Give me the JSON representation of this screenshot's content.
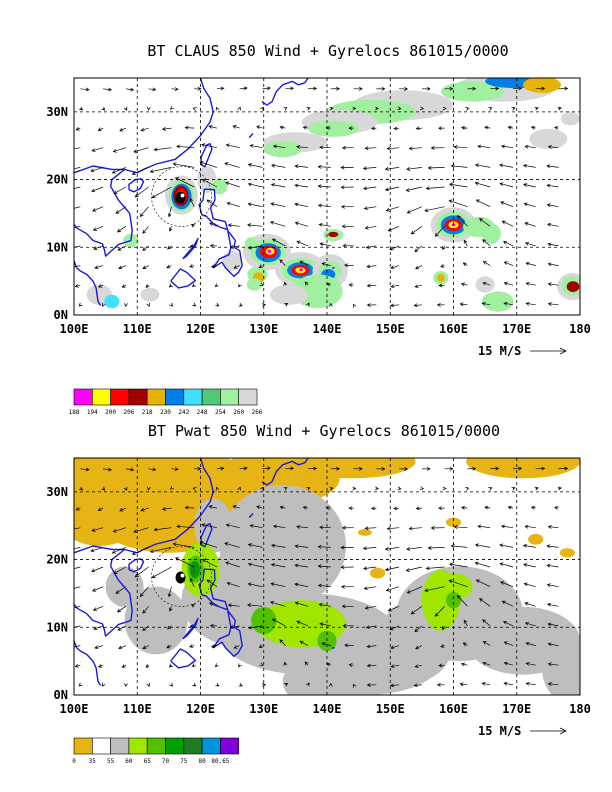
{
  "panels": [
    {
      "title": "BT CLAUS 850 Wind + Gyrelocs 861015/0000",
      "field": "claus"
    },
    {
      "title": "BT Pwat 850 Wind + Gyrelocs 861015/0000",
      "field": "pwat"
    }
  ],
  "map": {
    "lon_labels": [
      "100E",
      "110E",
      "120E",
      "130E",
      "140E",
      "150E",
      "160E",
      "170E",
      "180"
    ],
    "lat_labels": [
      "0N",
      "10N",
      "20N",
      "30N"
    ],
    "lon_range": [
      100,
      180
    ],
    "lat_range": [
      0,
      35
    ],
    "reference_vector": "15 M/S"
  },
  "claus_colorbar": {
    "labels": [
      "188",
      "194",
      "200",
      "206",
      "218",
      "230",
      "242",
      "248",
      "254",
      "260",
      "266"
    ],
    "colors": [
      "#ff00ff",
      "#ffff00",
      "#ff0000",
      "#a00000",
      "#e6b400",
      "#0080e6",
      "#40e0ff",
      "#50c878",
      "#a0f0a0",
      "#d8d8d8"
    ]
  },
  "pwat_colorbar": {
    "labels": [
      "0",
      "35",
      "55",
      "60",
      "65",
      "70",
      "75",
      "80",
      "80.65"
    ],
    "colors": [
      "#e6b414",
      "#ffffff",
      "#bebebe",
      "#a0e600",
      "#50c000",
      "#00a000",
      "#1e7d1e",
      "#0096dc",
      "#8200dc"
    ]
  },
  "colors": {
    "coast": "#1a1adc"
  }
}
